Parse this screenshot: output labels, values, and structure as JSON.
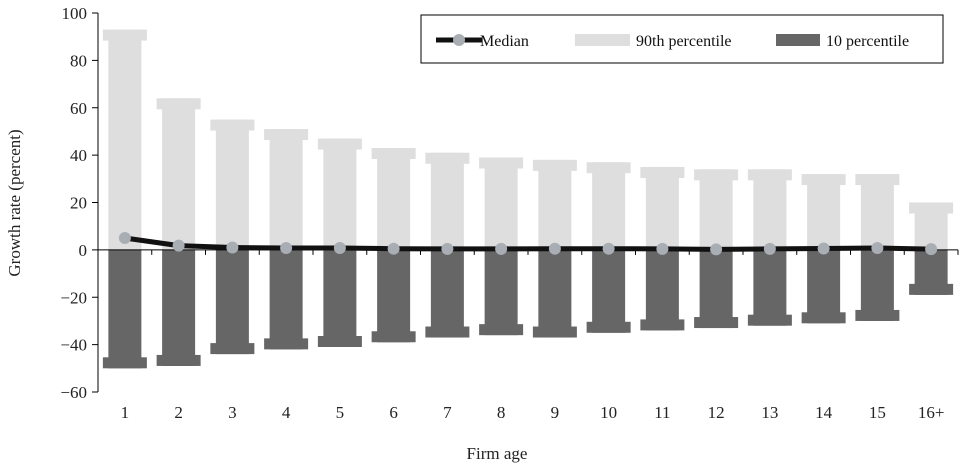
{
  "chart_data": {
    "type": "bar",
    "title": "",
    "xlabel": "Firm age",
    "ylabel": "Growth rate (percent)",
    "ylim": [
      -60,
      100
    ],
    "yticks": [
      -60,
      -40,
      -20,
      0,
      20,
      40,
      60,
      80,
      100
    ],
    "ytick_labels": [
      "−60",
      "−40",
      "−20",
      "0",
      "20",
      "40",
      "60",
      "80",
      "100"
    ],
    "categories": [
      "1",
      "2",
      "3",
      "4",
      "5",
      "6",
      "7",
      "8",
      "9",
      "10",
      "11",
      "12",
      "13",
      "14",
      "15",
      "16+"
    ],
    "grid": false,
    "legend_position": "top-right",
    "series": [
      {
        "name": "Median",
        "kind": "line",
        "color": "#111111",
        "marker_color": "#a9aeb5",
        "values": [
          5,
          1.8,
          1,
          0.8,
          0.8,
          0.5,
          0.4,
          0.4,
          0.5,
          0.5,
          0.4,
          0.2,
          0.4,
          0.6,
          0.8,
          0.3
        ]
      },
      {
        "name": "90th percentile",
        "kind": "bar",
        "color": "#dedede",
        "values": [
          93,
          64,
          55,
          51,
          47,
          43,
          41,
          39,
          38,
          37,
          35,
          34,
          34,
          32,
          32,
          20
        ]
      },
      {
        "name": "10 percentile",
        "kind": "bar",
        "color": "#666666",
        "values": [
          -50,
          -49,
          -44,
          -42,
          -41,
          -39,
          -37,
          -36,
          -37,
          -35,
          -34,
          -33,
          -32,
          -31,
          -30,
          -19
        ]
      }
    ]
  }
}
